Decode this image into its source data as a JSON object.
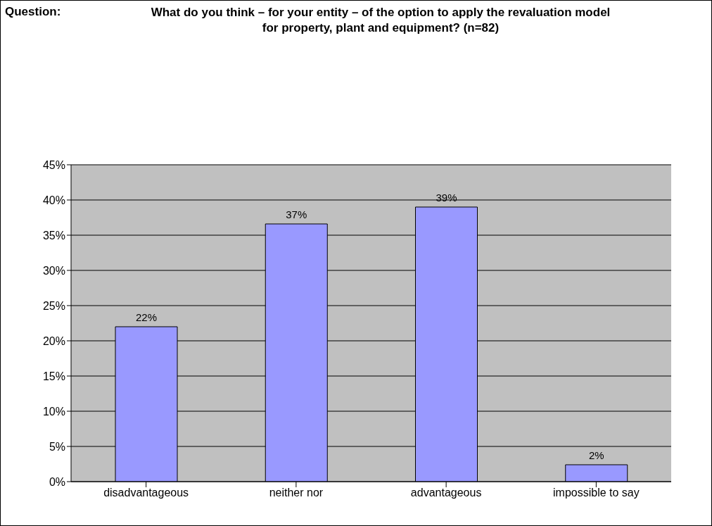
{
  "chart_data": {
    "type": "bar",
    "title": "What do you think – for your entity – of the option to apply the revaluation model for property, plant and equipment? (n=82)",
    "annotations": [
      "Question:"
    ],
    "categories": [
      "disadvantageous",
      "neither nor",
      "advantageous",
      "impossible to say"
    ],
    "values": [
      22,
      36.6,
      39,
      2.4
    ],
    "value_labels": [
      "22%",
      "37%",
      "39%",
      "2%"
    ],
    "color": "#9999ff",
    "ylim": [
      0,
      45
    ],
    "yticks": [
      {
        "value": 0,
        "label": "0%"
      },
      {
        "value": 5,
        "label": "5%"
      },
      {
        "value": 10,
        "label": "10%"
      },
      {
        "value": 15,
        "label": "15%"
      },
      {
        "value": 20,
        "label": "20%"
      },
      {
        "value": 25,
        "label": "25%"
      },
      {
        "value": 30,
        "label": "30%"
      },
      {
        "value": 35,
        "label": "35%"
      },
      {
        "value": 40,
        "label": "40%"
      },
      {
        "value": 45,
        "label": "45%"
      }
    ],
    "grid": "y",
    "legend": false
  }
}
